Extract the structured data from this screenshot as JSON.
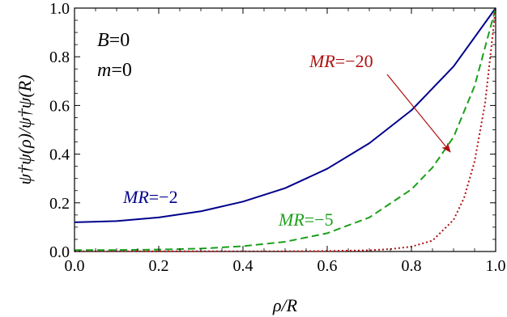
{
  "chart_data": {
    "type": "line",
    "xlabel": "ρ/R",
    "ylabel": "ψ†ψ(ρ)/ψ†ψ(R)",
    "xlim": [
      0,
      1
    ],
    "ylim": [
      0,
      1
    ],
    "x_ticks": [
      "0.0",
      "0.2",
      "0.4",
      "0.6",
      "0.8",
      "1.0"
    ],
    "y_ticks": [
      "0.0",
      "0.2",
      "0.4",
      "0.6",
      "0.8",
      "1.0"
    ],
    "annotations": [
      {
        "var": "B",
        "text": "=0"
      },
      {
        "var": "m",
        "text": "=0"
      }
    ],
    "series": [
      {
        "label_var": "MR",
        "label_text": "=−2",
        "color": "#00008b",
        "style": "solid",
        "x": [
          0,
          0.1,
          0.2,
          0.3,
          0.4,
          0.5,
          0.6,
          0.7,
          0.8,
          0.9,
          1.0
        ],
        "y": [
          0.12,
          0.125,
          0.14,
          0.165,
          0.205,
          0.26,
          0.34,
          0.445,
          0.58,
          0.76,
          1.0
        ]
      },
      {
        "label_var": "MR",
        "label_text": "=−5",
        "color": "#1aa01a",
        "style": "dashed",
        "x": [
          0,
          0.1,
          0.2,
          0.3,
          0.4,
          0.5,
          0.6,
          0.7,
          0.8,
          0.85,
          0.9,
          0.95,
          1.0
        ],
        "y": [
          0.006,
          0.006,
          0.008,
          0.012,
          0.022,
          0.04,
          0.075,
          0.14,
          0.255,
          0.345,
          0.47,
          0.68,
          1.0
        ]
      },
      {
        "label_var": "MR",
        "label_text": "=−20",
        "color": "#b01010",
        "style": "dotted",
        "x": [
          0,
          0.3,
          0.5,
          0.6,
          0.7,
          0.75,
          0.8,
          0.85,
          0.9,
          0.925,
          0.95,
          0.975,
          1.0
        ],
        "y": [
          0.001,
          0.001,
          0.001,
          0.002,
          0.005,
          0.01,
          0.02,
          0.045,
          0.13,
          0.22,
          0.37,
          0.61,
          1.0
        ]
      }
    ]
  }
}
